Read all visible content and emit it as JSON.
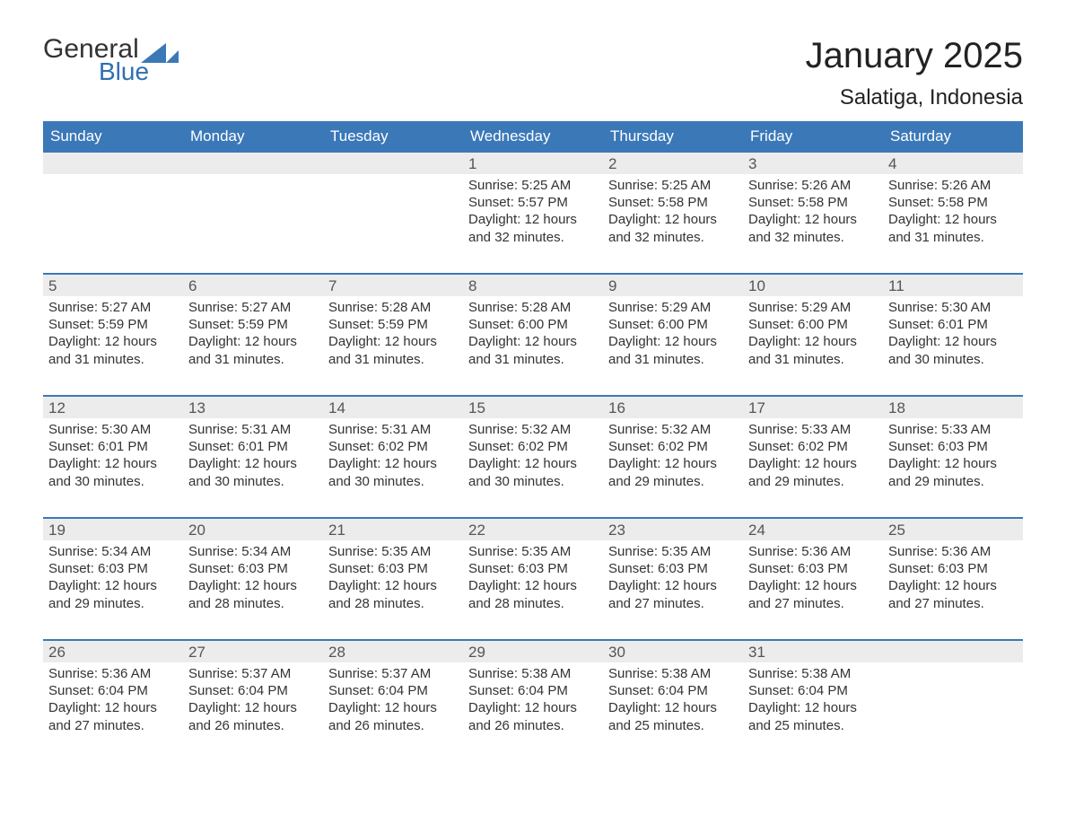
{
  "logo": {
    "line1": "General",
    "line2": "Blue"
  },
  "title": "January 2025",
  "location": "Salatiga, Indonesia",
  "colors": {
    "header_bg": "#3b78b8",
    "header_text": "#ffffff",
    "divider": "#3b78b8",
    "daynum_bg": "#ececec",
    "body_text": "#333333",
    "page_bg": "#ffffff"
  },
  "weekdays": [
    "Sunday",
    "Monday",
    "Tuesday",
    "Wednesday",
    "Thursday",
    "Friday",
    "Saturday"
  ],
  "weeks": [
    [
      {
        "day": null
      },
      {
        "day": null
      },
      {
        "day": null
      },
      {
        "day": 1,
        "sunrise": "Sunrise: 5:25 AM",
        "sunset": "Sunset: 5:57 PM",
        "daylight": "Daylight: 12 hours and 32 minutes."
      },
      {
        "day": 2,
        "sunrise": "Sunrise: 5:25 AM",
        "sunset": "Sunset: 5:58 PM",
        "daylight": "Daylight: 12 hours and 32 minutes."
      },
      {
        "day": 3,
        "sunrise": "Sunrise: 5:26 AM",
        "sunset": "Sunset: 5:58 PM",
        "daylight": "Daylight: 12 hours and 32 minutes."
      },
      {
        "day": 4,
        "sunrise": "Sunrise: 5:26 AM",
        "sunset": "Sunset: 5:58 PM",
        "daylight": "Daylight: 12 hours and 31 minutes."
      }
    ],
    [
      {
        "day": 5,
        "sunrise": "Sunrise: 5:27 AM",
        "sunset": "Sunset: 5:59 PM",
        "daylight": "Daylight: 12 hours and 31 minutes."
      },
      {
        "day": 6,
        "sunrise": "Sunrise: 5:27 AM",
        "sunset": "Sunset: 5:59 PM",
        "daylight": "Daylight: 12 hours and 31 minutes."
      },
      {
        "day": 7,
        "sunrise": "Sunrise: 5:28 AM",
        "sunset": "Sunset: 5:59 PM",
        "daylight": "Daylight: 12 hours and 31 minutes."
      },
      {
        "day": 8,
        "sunrise": "Sunrise: 5:28 AM",
        "sunset": "Sunset: 6:00 PM",
        "daylight": "Daylight: 12 hours and 31 minutes."
      },
      {
        "day": 9,
        "sunrise": "Sunrise: 5:29 AM",
        "sunset": "Sunset: 6:00 PM",
        "daylight": "Daylight: 12 hours and 31 minutes."
      },
      {
        "day": 10,
        "sunrise": "Sunrise: 5:29 AM",
        "sunset": "Sunset: 6:00 PM",
        "daylight": "Daylight: 12 hours and 31 minutes."
      },
      {
        "day": 11,
        "sunrise": "Sunrise: 5:30 AM",
        "sunset": "Sunset: 6:01 PM",
        "daylight": "Daylight: 12 hours and 30 minutes."
      }
    ],
    [
      {
        "day": 12,
        "sunrise": "Sunrise: 5:30 AM",
        "sunset": "Sunset: 6:01 PM",
        "daylight": "Daylight: 12 hours and 30 minutes."
      },
      {
        "day": 13,
        "sunrise": "Sunrise: 5:31 AM",
        "sunset": "Sunset: 6:01 PM",
        "daylight": "Daylight: 12 hours and 30 minutes."
      },
      {
        "day": 14,
        "sunrise": "Sunrise: 5:31 AM",
        "sunset": "Sunset: 6:02 PM",
        "daylight": "Daylight: 12 hours and 30 minutes."
      },
      {
        "day": 15,
        "sunrise": "Sunrise: 5:32 AM",
        "sunset": "Sunset: 6:02 PM",
        "daylight": "Daylight: 12 hours and 30 minutes."
      },
      {
        "day": 16,
        "sunrise": "Sunrise: 5:32 AM",
        "sunset": "Sunset: 6:02 PM",
        "daylight": "Daylight: 12 hours and 29 minutes."
      },
      {
        "day": 17,
        "sunrise": "Sunrise: 5:33 AM",
        "sunset": "Sunset: 6:02 PM",
        "daylight": "Daylight: 12 hours and 29 minutes."
      },
      {
        "day": 18,
        "sunrise": "Sunrise: 5:33 AM",
        "sunset": "Sunset: 6:03 PM",
        "daylight": "Daylight: 12 hours and 29 minutes."
      }
    ],
    [
      {
        "day": 19,
        "sunrise": "Sunrise: 5:34 AM",
        "sunset": "Sunset: 6:03 PM",
        "daylight": "Daylight: 12 hours and 29 minutes."
      },
      {
        "day": 20,
        "sunrise": "Sunrise: 5:34 AM",
        "sunset": "Sunset: 6:03 PM",
        "daylight": "Daylight: 12 hours and 28 minutes."
      },
      {
        "day": 21,
        "sunrise": "Sunrise: 5:35 AM",
        "sunset": "Sunset: 6:03 PM",
        "daylight": "Daylight: 12 hours and 28 minutes."
      },
      {
        "day": 22,
        "sunrise": "Sunrise: 5:35 AM",
        "sunset": "Sunset: 6:03 PM",
        "daylight": "Daylight: 12 hours and 28 minutes."
      },
      {
        "day": 23,
        "sunrise": "Sunrise: 5:35 AM",
        "sunset": "Sunset: 6:03 PM",
        "daylight": "Daylight: 12 hours and 27 minutes."
      },
      {
        "day": 24,
        "sunrise": "Sunrise: 5:36 AM",
        "sunset": "Sunset: 6:03 PM",
        "daylight": "Daylight: 12 hours and 27 minutes."
      },
      {
        "day": 25,
        "sunrise": "Sunrise: 5:36 AM",
        "sunset": "Sunset: 6:03 PM",
        "daylight": "Daylight: 12 hours and 27 minutes."
      }
    ],
    [
      {
        "day": 26,
        "sunrise": "Sunrise: 5:36 AM",
        "sunset": "Sunset: 6:04 PM",
        "daylight": "Daylight: 12 hours and 27 minutes."
      },
      {
        "day": 27,
        "sunrise": "Sunrise: 5:37 AM",
        "sunset": "Sunset: 6:04 PM",
        "daylight": "Daylight: 12 hours and 26 minutes."
      },
      {
        "day": 28,
        "sunrise": "Sunrise: 5:37 AM",
        "sunset": "Sunset: 6:04 PM",
        "daylight": "Daylight: 12 hours and 26 minutes."
      },
      {
        "day": 29,
        "sunrise": "Sunrise: 5:38 AM",
        "sunset": "Sunset: 6:04 PM",
        "daylight": "Daylight: 12 hours and 26 minutes."
      },
      {
        "day": 30,
        "sunrise": "Sunrise: 5:38 AM",
        "sunset": "Sunset: 6:04 PM",
        "daylight": "Daylight: 12 hours and 25 minutes."
      },
      {
        "day": 31,
        "sunrise": "Sunrise: 5:38 AM",
        "sunset": "Sunset: 6:04 PM",
        "daylight": "Daylight: 12 hours and 25 minutes."
      },
      {
        "day": null
      }
    ]
  ]
}
